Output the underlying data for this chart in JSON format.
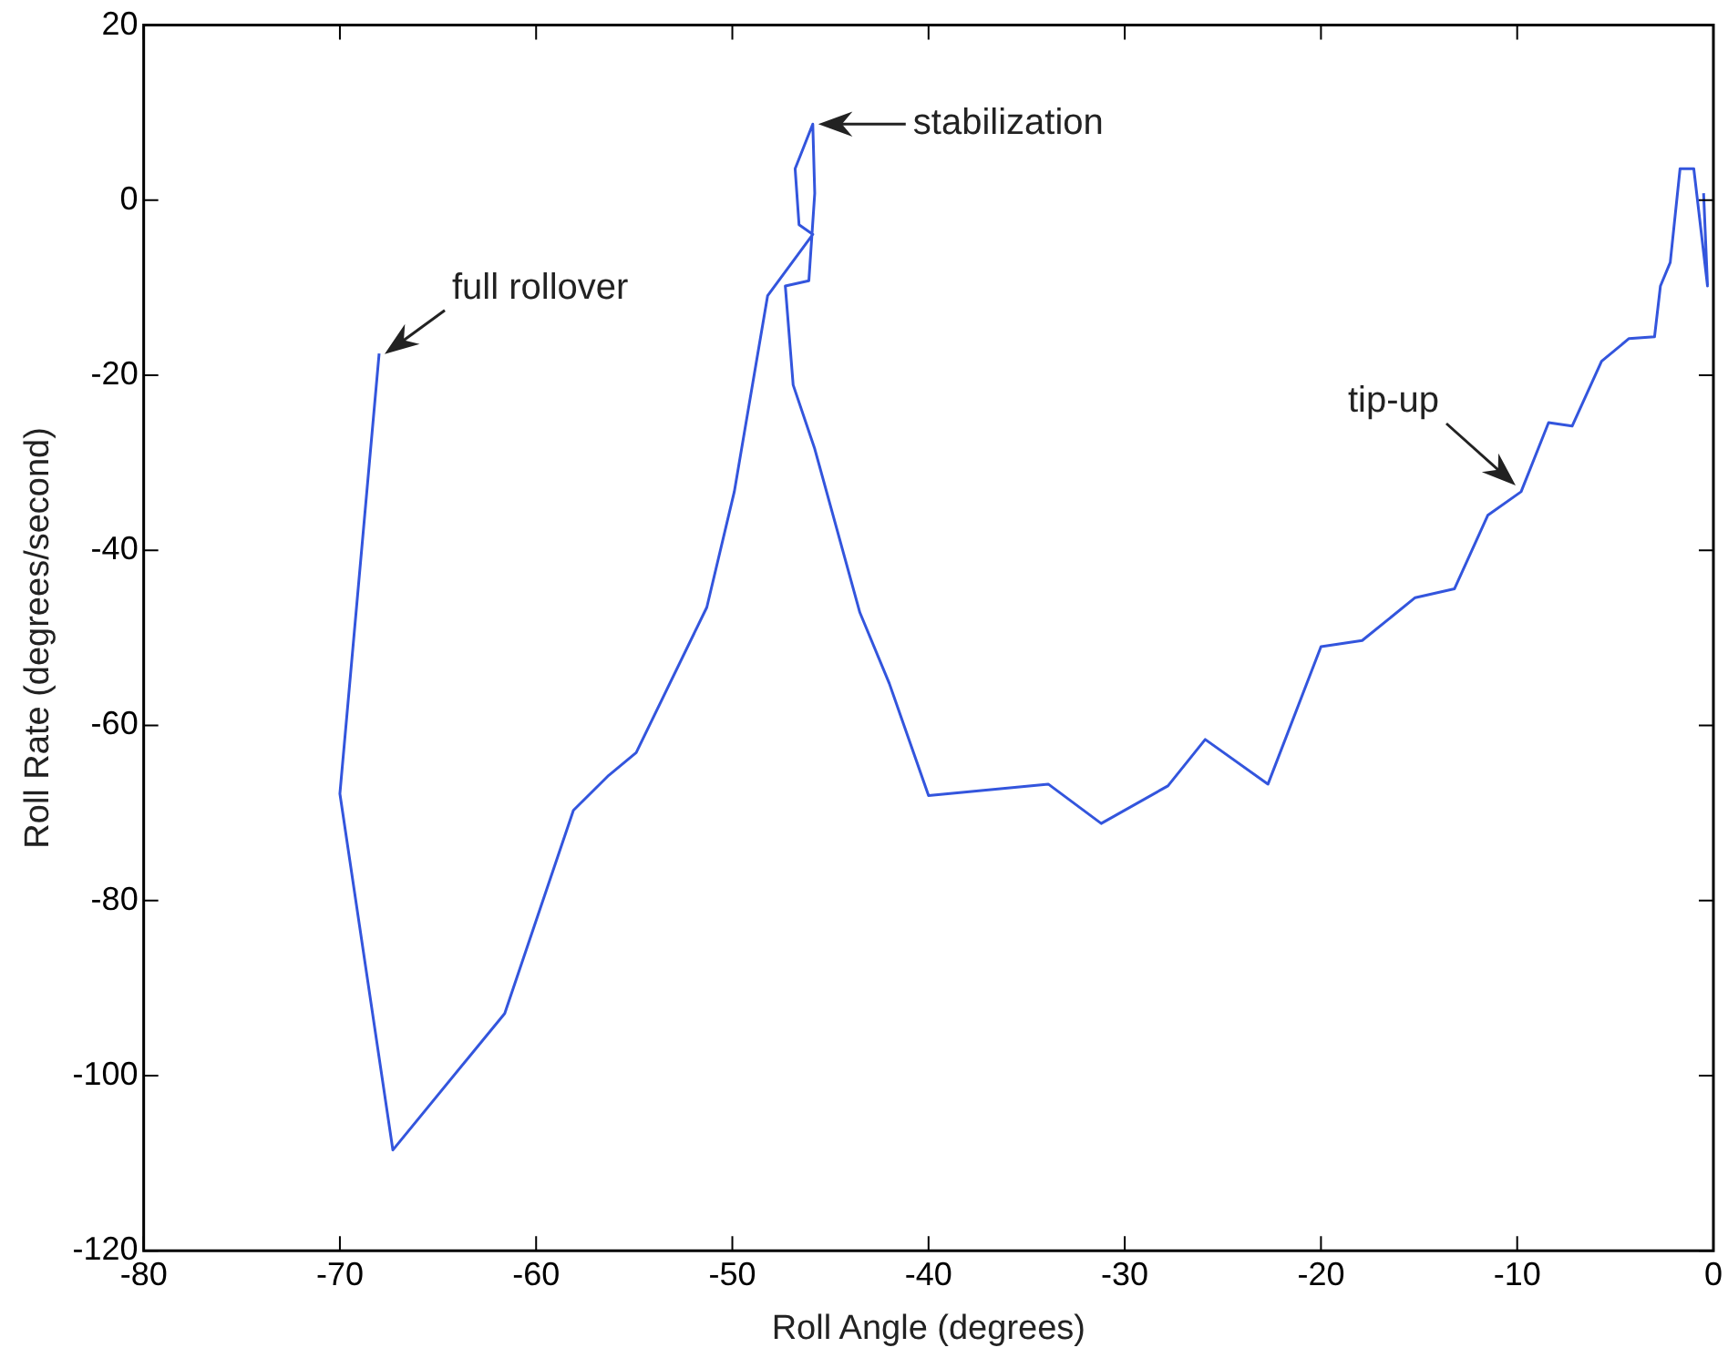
{
  "chart_data": {
    "type": "line",
    "xlabel": "Roll Angle (degrees)",
    "ylabel": "Roll Rate (degrees/second)",
    "xlim": [
      -80,
      0
    ],
    "xticks": [
      -80,
      -70,
      -60,
      -50,
      -40,
      -30,
      -20,
      -10,
      0
    ],
    "ylim": [
      -120,
      20
    ],
    "yticks": [
      -120,
      -100,
      -80,
      -60,
      -40,
      -20,
      0,
      20
    ],
    "grid": false,
    "legend": false,
    "marker": "none",
    "line_style": "solid",
    "annotations": [
      {
        "text": "full rollover",
        "x": -68,
        "y": -18
      },
      {
        "text": "stabilization",
        "x": -45.9,
        "y": 8.7
      },
      {
        "text": "tip-up",
        "x": -9.8,
        "y": -33
      }
    ],
    "series": [
      {
        "color": "#3355dd",
        "x": [
          -0.5,
          -0.3,
          -1,
          -1.7,
          -2.2,
          -2.7,
          -3,
          -4.3,
          -5.7,
          -7.2,
          -8.4,
          -9.8,
          -11.5,
          -13.2,
          -15.2,
          -17.9,
          -20,
          -22.7,
          -25.9,
          -27.8,
          -31.2,
          -33.9,
          -40,
          -42,
          -43.5,
          -45.8,
          -46.9,
          -47.3,
          -46.1,
          -45.8,
          -45.9,
          -46.8,
          -46.6,
          -45.9,
          -48.2,
          -49.9,
          -51.3,
          -54.9,
          -56.3,
          -58.1,
          -61.6,
          -67.3,
          -70,
          -68
        ],
        "values": [
          0.8,
          -9.8,
          3.6,
          3.6,
          -7.1,
          -9.8,
          -15.6,
          -15.8,
          -18.4,
          -25.8,
          -25.4,
          -33.3,
          -36,
          -44.4,
          -45.4,
          -50.3,
          -51,
          -66.7,
          -61.6,
          -66.9,
          -71.2,
          -66.7,
          -68,
          -55.2,
          -47.1,
          -28.4,
          -21.1,
          -9.8,
          -9.2,
          0.8,
          8.7,
          3.6,
          -2.8,
          -3.9,
          -10.9,
          -33.3,
          -46.5,
          -63.1,
          -65.7,
          -69.7,
          -92.9,
          -108.5,
          -67.8,
          -17.5
        ]
      }
    ]
  }
}
